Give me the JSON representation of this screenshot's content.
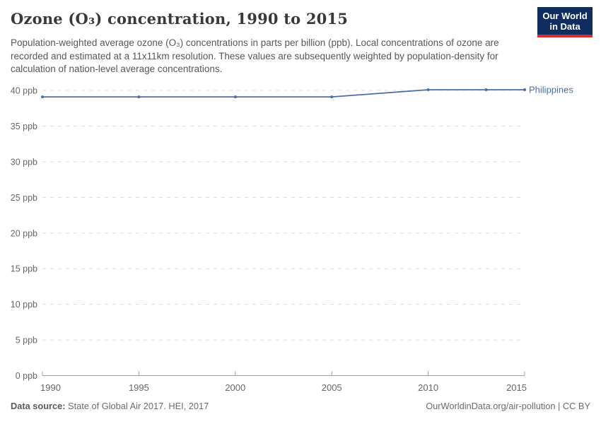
{
  "header": {
    "title": "Ozone (O₃) concentration, 1990 to 2015",
    "subtitle": "Population-weighted average ozone (O₃) concentrations in parts per billion (ppb). Local concentrations of ozone are recorded and estimated at a 11x11km resolution. These values are subsequently weighted by population-density for calculation of nation-level average concentrations."
  },
  "logo": {
    "line1": "Our World",
    "line2": "in Data"
  },
  "chart_data": {
    "type": "line",
    "title": "Ozone (O₃) concentration, 1990 to 2015",
    "xlabel": "",
    "ylabel": "",
    "y_unit": "ppb",
    "xlim": [
      1990,
      2015
    ],
    "ylim": [
      0,
      40
    ],
    "xticks": [
      1990,
      1995,
      2000,
      2005,
      2010,
      2015
    ],
    "yticks": [
      0,
      5,
      10,
      15,
      20,
      25,
      30,
      35,
      40
    ],
    "grid": "horizontal-dashed",
    "legend_position": "end-of-line-label",
    "series": [
      {
        "name": "Philippines",
        "x": [
          1990,
          1995,
          2000,
          2005,
          2010,
          2013,
          2015
        ],
        "values": [
          39.1,
          39.1,
          39.1,
          39.1,
          40.1,
          40.1,
          40.1
        ]
      }
    ]
  },
  "footer": {
    "source_label": "Data source:",
    "source_text": " State of Global Air 2017. HEI, 2017",
    "credit": "OurWorldinData.org/air-pollution | CC BY"
  },
  "colors": {
    "line": "#4a6fa5",
    "grid": "#dcdcdc",
    "axis": "#a0a0a0",
    "tick_text": "#666666",
    "logo_bg": "#0f2e5f",
    "logo_accent": "#d92b2b"
  }
}
